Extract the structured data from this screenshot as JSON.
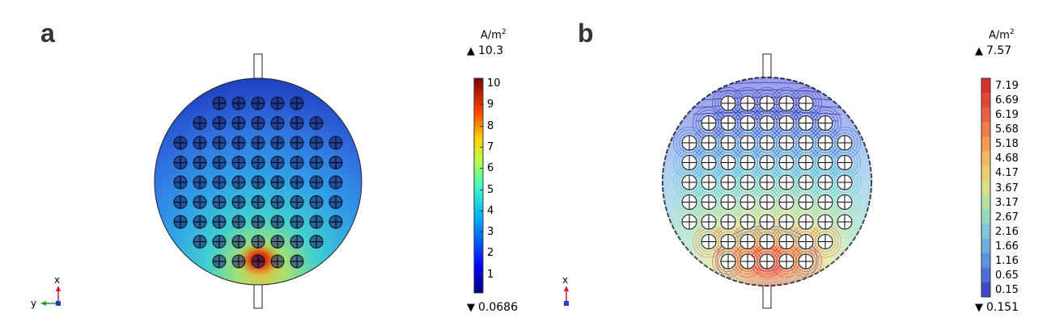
{
  "panel_a": {
    "label": "a",
    "unit": "A/m",
    "unit_exp": "2",
    "max": "10.3",
    "min": "0.0686",
    "ticks": [
      "10",
      "9",
      "8",
      "7",
      "6",
      "5",
      "4",
      "3",
      "2",
      "1"
    ],
    "axis_labels": {
      "x": "x",
      "y": "y"
    }
  },
  "panel_b": {
    "label": "b",
    "unit": "A/m",
    "unit_exp": "2",
    "max": "7.57",
    "min": "0.151",
    "ticks": [
      "7.19",
      "6.69",
      "6.19",
      "5.68",
      "5.18",
      "4.68",
      "4.17",
      "3.67",
      "3.17",
      "2.67",
      "2.16",
      "1.66",
      "1.16",
      "0.65",
      "0.15"
    ],
    "axis_labels": {
      "x": "x"
    }
  },
  "colors": {
    "colormap_a": [
      "#00007f",
      "#0000ff",
      "#0080ff",
      "#00ffff",
      "#80ff80",
      "#ffff00",
      "#ff8000",
      "#ff0000",
      "#7f0000"
    ],
    "colormap_b": [
      "#3a3ad0",
      "#4a7ae0",
      "#5fb8e8",
      "#8fe0d0",
      "#c8e890",
      "#f0d060",
      "#f08040",
      "#d83030"
    ]
  }
}
